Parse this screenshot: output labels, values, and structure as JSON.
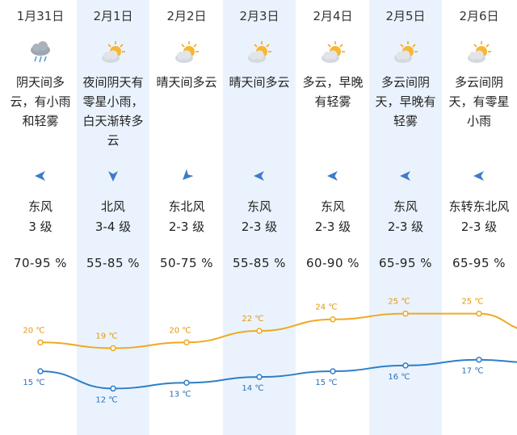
{
  "days": [
    {
      "date": "1月31日",
      "icon": "cloud-rain-icon",
      "desc": "阴天间多云，有小雨和轻雾",
      "wind_dir": "东风",
      "wind_level": "3 级",
      "wind_arrow": "left-arrow-icon",
      "humidity": "70-95 %",
      "high": "20 ℃",
      "low": "15 ℃"
    },
    {
      "date": "2月1日",
      "icon": "sun-cloud-icon",
      "desc": "夜间阴天有零星小雨，白天渐转多云",
      "wind_dir": "北风",
      "wind_level": "3-4 级",
      "wind_arrow": "down-arrow-icon",
      "humidity": "55-85 %",
      "high": "19 ℃",
      "low": "12 ℃"
    },
    {
      "date": "2月2日",
      "icon": "sun-cloud-icon",
      "desc": "晴天间多云",
      "wind_dir": "东北风",
      "wind_level": "2-3 级",
      "wind_arrow": "down-left-arrow-icon",
      "humidity": "50-75 %",
      "high": "20 ℃",
      "low": "13 ℃"
    },
    {
      "date": "2月3日",
      "icon": "sun-cloud-icon",
      "desc": "晴天间多云",
      "wind_dir": "东风",
      "wind_level": "2-3 级",
      "wind_arrow": "left-arrow-icon",
      "humidity": "55-85 %",
      "high": "22 ℃",
      "low": "14 ℃"
    },
    {
      "date": "2月4日",
      "icon": "sun-cloud-icon",
      "desc": "多云，早晚有轻雾",
      "wind_dir": "东风",
      "wind_level": "2-3 级",
      "wind_arrow": "left-arrow-icon",
      "humidity": "60-90 %",
      "high": "24 ℃",
      "low": "15 ℃"
    },
    {
      "date": "2月5日",
      "icon": "sun-cloud-icon",
      "desc": "多云间阴天，早晚有轻雾",
      "wind_dir": "东风",
      "wind_level": "2-3 级",
      "wind_arrow": "left-arrow-icon",
      "humidity": "65-95 %",
      "high": "25 ℃",
      "low": "16 ℃"
    },
    {
      "date": "2月6日",
      "icon": "sun-cloud-icon",
      "desc": "多云间阴天，有零星小雨",
      "wind_dir": "东转东北风",
      "wind_level": "2-3 级",
      "wind_arrow": "left-arrow-icon",
      "humidity": "65-95 %",
      "high": "25 ℃",
      "low": "17 ℃"
    }
  ],
  "colors": {
    "high_line": "#f0a91f",
    "low_line": "#2f7fc5",
    "alt_column": "#eaf3fd"
  },
  "chart_data": {
    "type": "line",
    "categories": [
      "1月31日",
      "2月1日",
      "2月2日",
      "2月3日",
      "2月4日",
      "2月5日",
      "2月6日"
    ],
    "series": [
      {
        "values": [
          20,
          19,
          20,
          22,
          24,
          25,
          25
        ]
      },
      {
        "values": [
          15,
          12,
          13,
          14,
          15,
          16,
          17
        ]
      }
    ],
    "unit": "℃"
  }
}
